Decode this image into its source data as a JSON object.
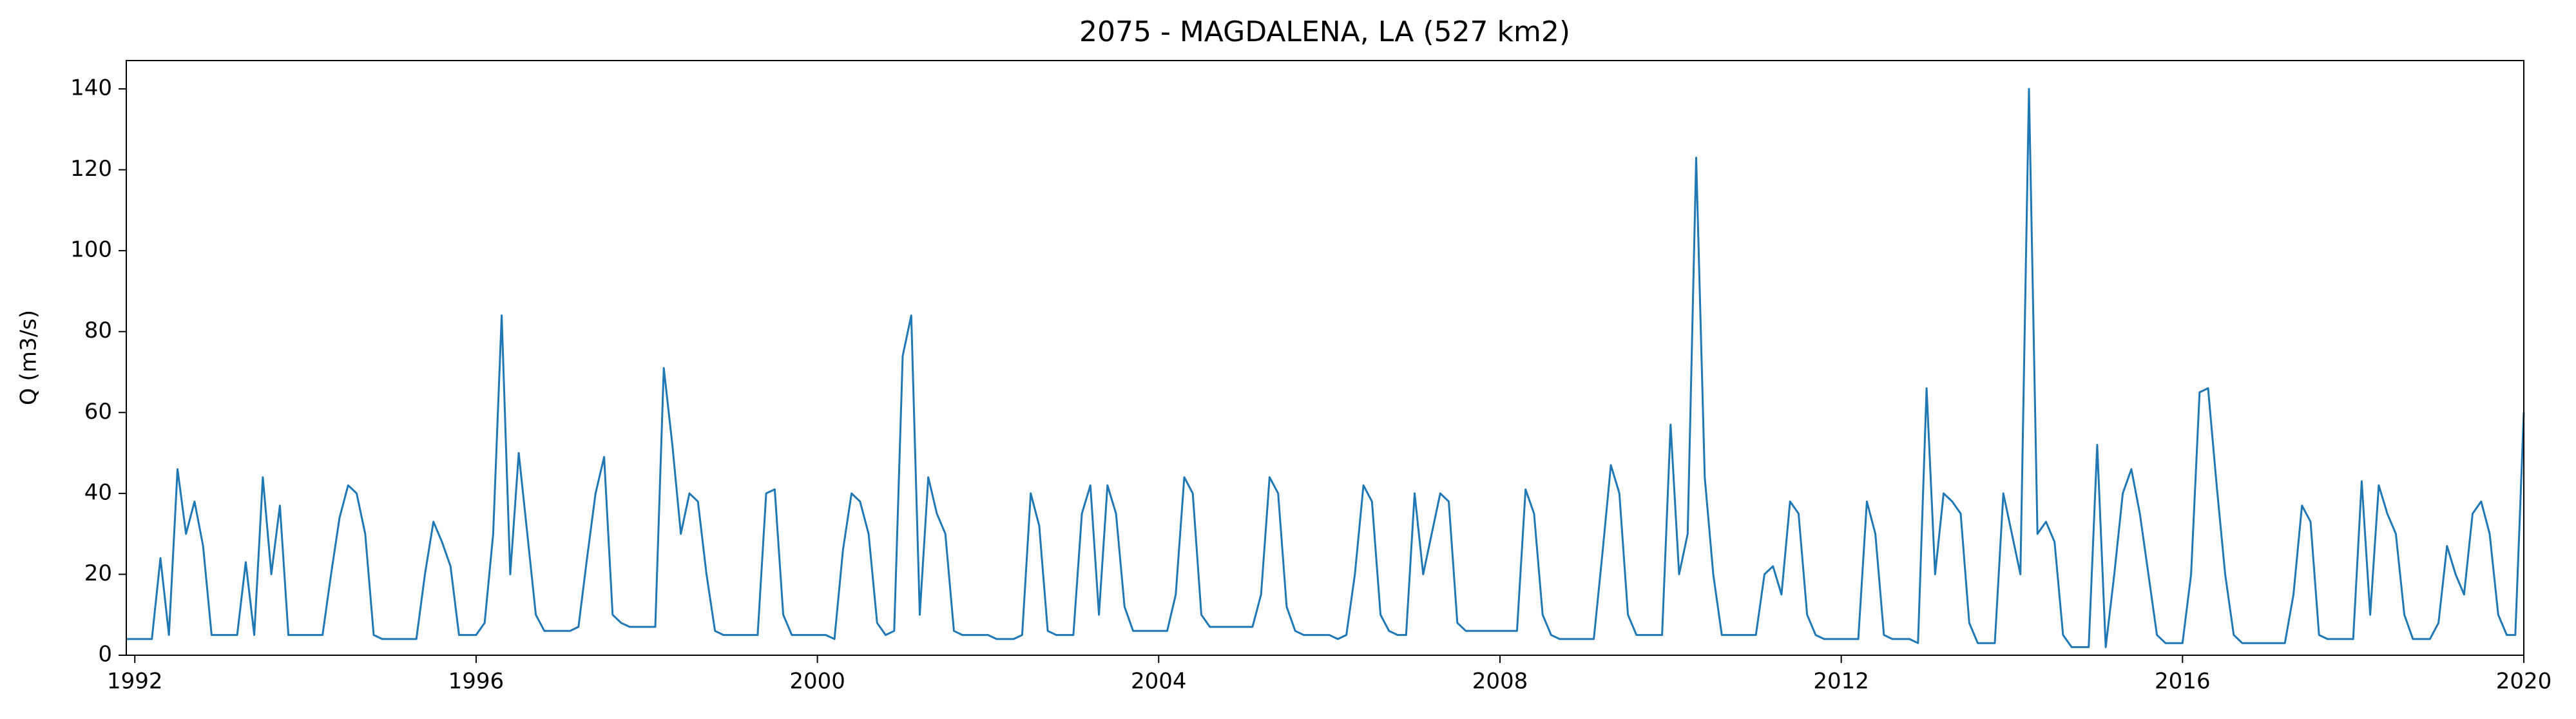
{
  "chart_data": {
    "type": "line",
    "title": "2075 - MAGDALENA, LA (527 km2)",
    "y_label": "Q (m3/s)",
    "xlim": [
      1991.9,
      2020
    ],
    "xticks": [
      1992,
      1996,
      2000,
      2004,
      2008,
      2012,
      2016,
      2020
    ],
    "ylim": [
      0,
      147
    ],
    "yticks": [
      0,
      20,
      40,
      60,
      80,
      100,
      120,
      140
    ],
    "grid": false,
    "series": [
      {
        "name": "Q",
        "color": "#1f77b4",
        "x": [
          1991.9,
          1992,
          1992.1,
          1992.2,
          1992.3,
          1992.4,
          1992.5,
          1992.6,
          1992.7,
          1992.8,
          1992.9,
          1993,
          1993.1,
          1993.2,
          1993.3,
          1993.4,
          1993.5,
          1993.6,
          1993.7,
          1993.8,
          1993.9,
          1994,
          1994.1,
          1994.2,
          1994.3,
          1994.4,
          1994.5,
          1994.6,
          1994.7,
          1994.8,
          1994.9,
          1995,
          1995.1,
          1995.2,
          1995.3,
          1995.4,
          1995.5,
          1995.6,
          1995.7,
          1995.8,
          1995.9,
          1996,
          1996.1,
          1996.2,
          1996.3,
          1996.4,
          1996.5,
          1996.6,
          1996.7,
          1996.8,
          1996.9,
          1997,
          1997.1,
          1997.2,
          1997.3,
          1997.4,
          1997.5,
          1997.6,
          1997.7,
          1997.8,
          1997.9,
          1998,
          1998.1,
          1998.2,
          1998.3,
          1998.4,
          1998.5,
          1998.6,
          1998.7,
          1998.8,
          1998.9,
          1999,
          1999.1,
          1999.2,
          1999.3,
          1999.4,
          1999.5,
          1999.6,
          1999.7,
          1999.8,
          1999.9,
          2000,
          2000.1,
          2000.2,
          2000.3,
          2000.4,
          2000.5,
          2000.6,
          2000.7,
          2000.8,
          2000.9,
          2001,
          2001.1,
          2001.2,
          2001.3,
          2001.4,
          2001.5,
          2001.6,
          2001.7,
          2001.8,
          2001.9,
          2002,
          2002.1,
          2002.2,
          2002.3,
          2002.4,
          2002.5,
          2002.6,
          2002.7,
          2002.8,
          2002.9,
          2003,
          2003.1,
          2003.2,
          2003.3,
          2003.4,
          2003.5,
          2003.6,
          2003.7,
          2003.8,
          2003.9,
          2004,
          2004.1,
          2004.2,
          2004.3,
          2004.4,
          2004.5,
          2004.6,
          2004.7,
          2004.8,
          2004.9,
          2005,
          2005.1,
          2005.2,
          2005.3,
          2005.4,
          2005.5,
          2005.6,
          2005.7,
          2005.8,
          2005.9,
          2006,
          2006.1,
          2006.2,
          2006.3,
          2006.4,
          2006.5,
          2006.6,
          2006.7,
          2006.8,
          2006.9,
          2007,
          2007.1,
          2007.2,
          2007.3,
          2007.4,
          2007.5,
          2007.6,
          2007.7,
          2007.8,
          2007.9,
          2008,
          2008.1,
          2008.2,
          2008.3,
          2008.4,
          2008.5,
          2008.6,
          2008.7,
          2008.8,
          2008.9,
          2009,
          2009.1,
          2009.2,
          2009.3,
          2009.4,
          2009.5,
          2009.6,
          2009.7,
          2009.8,
          2009.9,
          2010,
          2010.1,
          2010.2,
          2010.3,
          2010.4,
          2010.5,
          2010.6,
          2010.7,
          2010.8,
          2010.9,
          2011,
          2011.1,
          2011.2,
          2011.3,
          2011.4,
          2011.5,
          2011.6,
          2011.7,
          2011.8,
          2011.9,
          2012,
          2012.1,
          2012.2,
          2012.3,
          2012.4,
          2012.5,
          2012.6,
          2012.7,
          2012.8,
          2012.9,
          2013,
          2013.1,
          2013.2,
          2013.3,
          2013.4,
          2013.5,
          2013.6,
          2013.7,
          2013.8,
          2013.9,
          2014,
          2014.1,
          2014.2,
          2014.3,
          2014.4,
          2014.5,
          2014.6,
          2014.7,
          2014.8,
          2014.9,
          2015,
          2015.1,
          2015.2,
          2015.3,
          2015.4,
          2015.5,
          2015.6,
          2015.7,
          2015.8,
          2015.9,
          2016,
          2016.1,
          2016.2,
          2016.3,
          2016.4,
          2016.5,
          2016.6,
          2016.7,
          2016.8,
          2016.9,
          2017,
          2017.1,
          2017.2,
          2017.3,
          2017.4,
          2017.5,
          2017.6,
          2017.7,
          2017.8,
          2017.9,
          2018,
          2018.1,
          2018.2,
          2018.3,
          2018.4,
          2018.5,
          2018.6,
          2018.7,
          2018.8,
          2018.9,
          2019,
          2019.1,
          2019.2,
          2019.3,
          2019.4,
          2019.5,
          2019.6,
          2019.7,
          2019.8,
          2019.9,
          2020
        ],
        "values": [
          4,
          4,
          4,
          4,
          24,
          5,
          46,
          30,
          38,
          27,
          5,
          5,
          5,
          5,
          23,
          5,
          44,
          20,
          37,
          5,
          5,
          5,
          5,
          5,
          20,
          34,
          42,
          40,
          30,
          5,
          4,
          4,
          4,
          4,
          4,
          20,
          33,
          28,
          22,
          5,
          5,
          5,
          8,
          30,
          84,
          20,
          50,
          30,
          10,
          6,
          6,
          6,
          6,
          7,
          24,
          40,
          49,
          10,
          8,
          7,
          7,
          7,
          7,
          71,
          52,
          30,
          40,
          38,
          20,
          6,
          5,
          5,
          5,
          5,
          5,
          40,
          41,
          10,
          5,
          5,
          5,
          5,
          5,
          4,
          26,
          40,
          38,
          30,
          8,
          5,
          6,
          74,
          84,
          10,
          44,
          35,
          30,
          6,
          5,
          5,
          5,
          5,
          4,
          4,
          4,
          5,
          40,
          32,
          6,
          5,
          5,
          5,
          35,
          42,
          10,
          42,
          35,
          12,
          6,
          6,
          6,
          6,
          6,
          15,
          44,
          40,
          10,
          7,
          7,
          7,
          7,
          7,
          7,
          15,
          44,
          40,
          12,
          6,
          5,
          5,
          5,
          5,
          4,
          5,
          20,
          42,
          38,
          10,
          6,
          5,
          5,
          40,
          20,
          30,
          40,
          38,
          8,
          6,
          6,
          6,
          6,
          6,
          6,
          6,
          41,
          35,
          10,
          5,
          4,
          4,
          4,
          4,
          4,
          25,
          47,
          40,
          10,
          5,
          5,
          5,
          5,
          57,
          20,
          30,
          123,
          44,
          20,
          5,
          5,
          5,
          5,
          5,
          20,
          22,
          15,
          38,
          35,
          10,
          5,
          4,
          4,
          4,
          4,
          4,
          38,
          30,
          5,
          4,
          4,
          4,
          3,
          66,
          20,
          40,
          38,
          35,
          8,
          3,
          3,
          3,
          40,
          30,
          20,
          140,
          30,
          33,
          28,
          5,
          2,
          2,
          2,
          52,
          2,
          20,
          40,
          46,
          35,
          20,
          5,
          3,
          3,
          3,
          20,
          65,
          66,
          42,
          20,
          5,
          3,
          3,
          3,
          3,
          3,
          3,
          15,
          37,
          33,
          5,
          4,
          4,
          4,
          4,
          43,
          10,
          42,
          35,
          30,
          10,
          4,
          4,
          4,
          8,
          27,
          20,
          15,
          35,
          38,
          30,
          10,
          5,
          5,
          60
        ]
      }
    ]
  }
}
